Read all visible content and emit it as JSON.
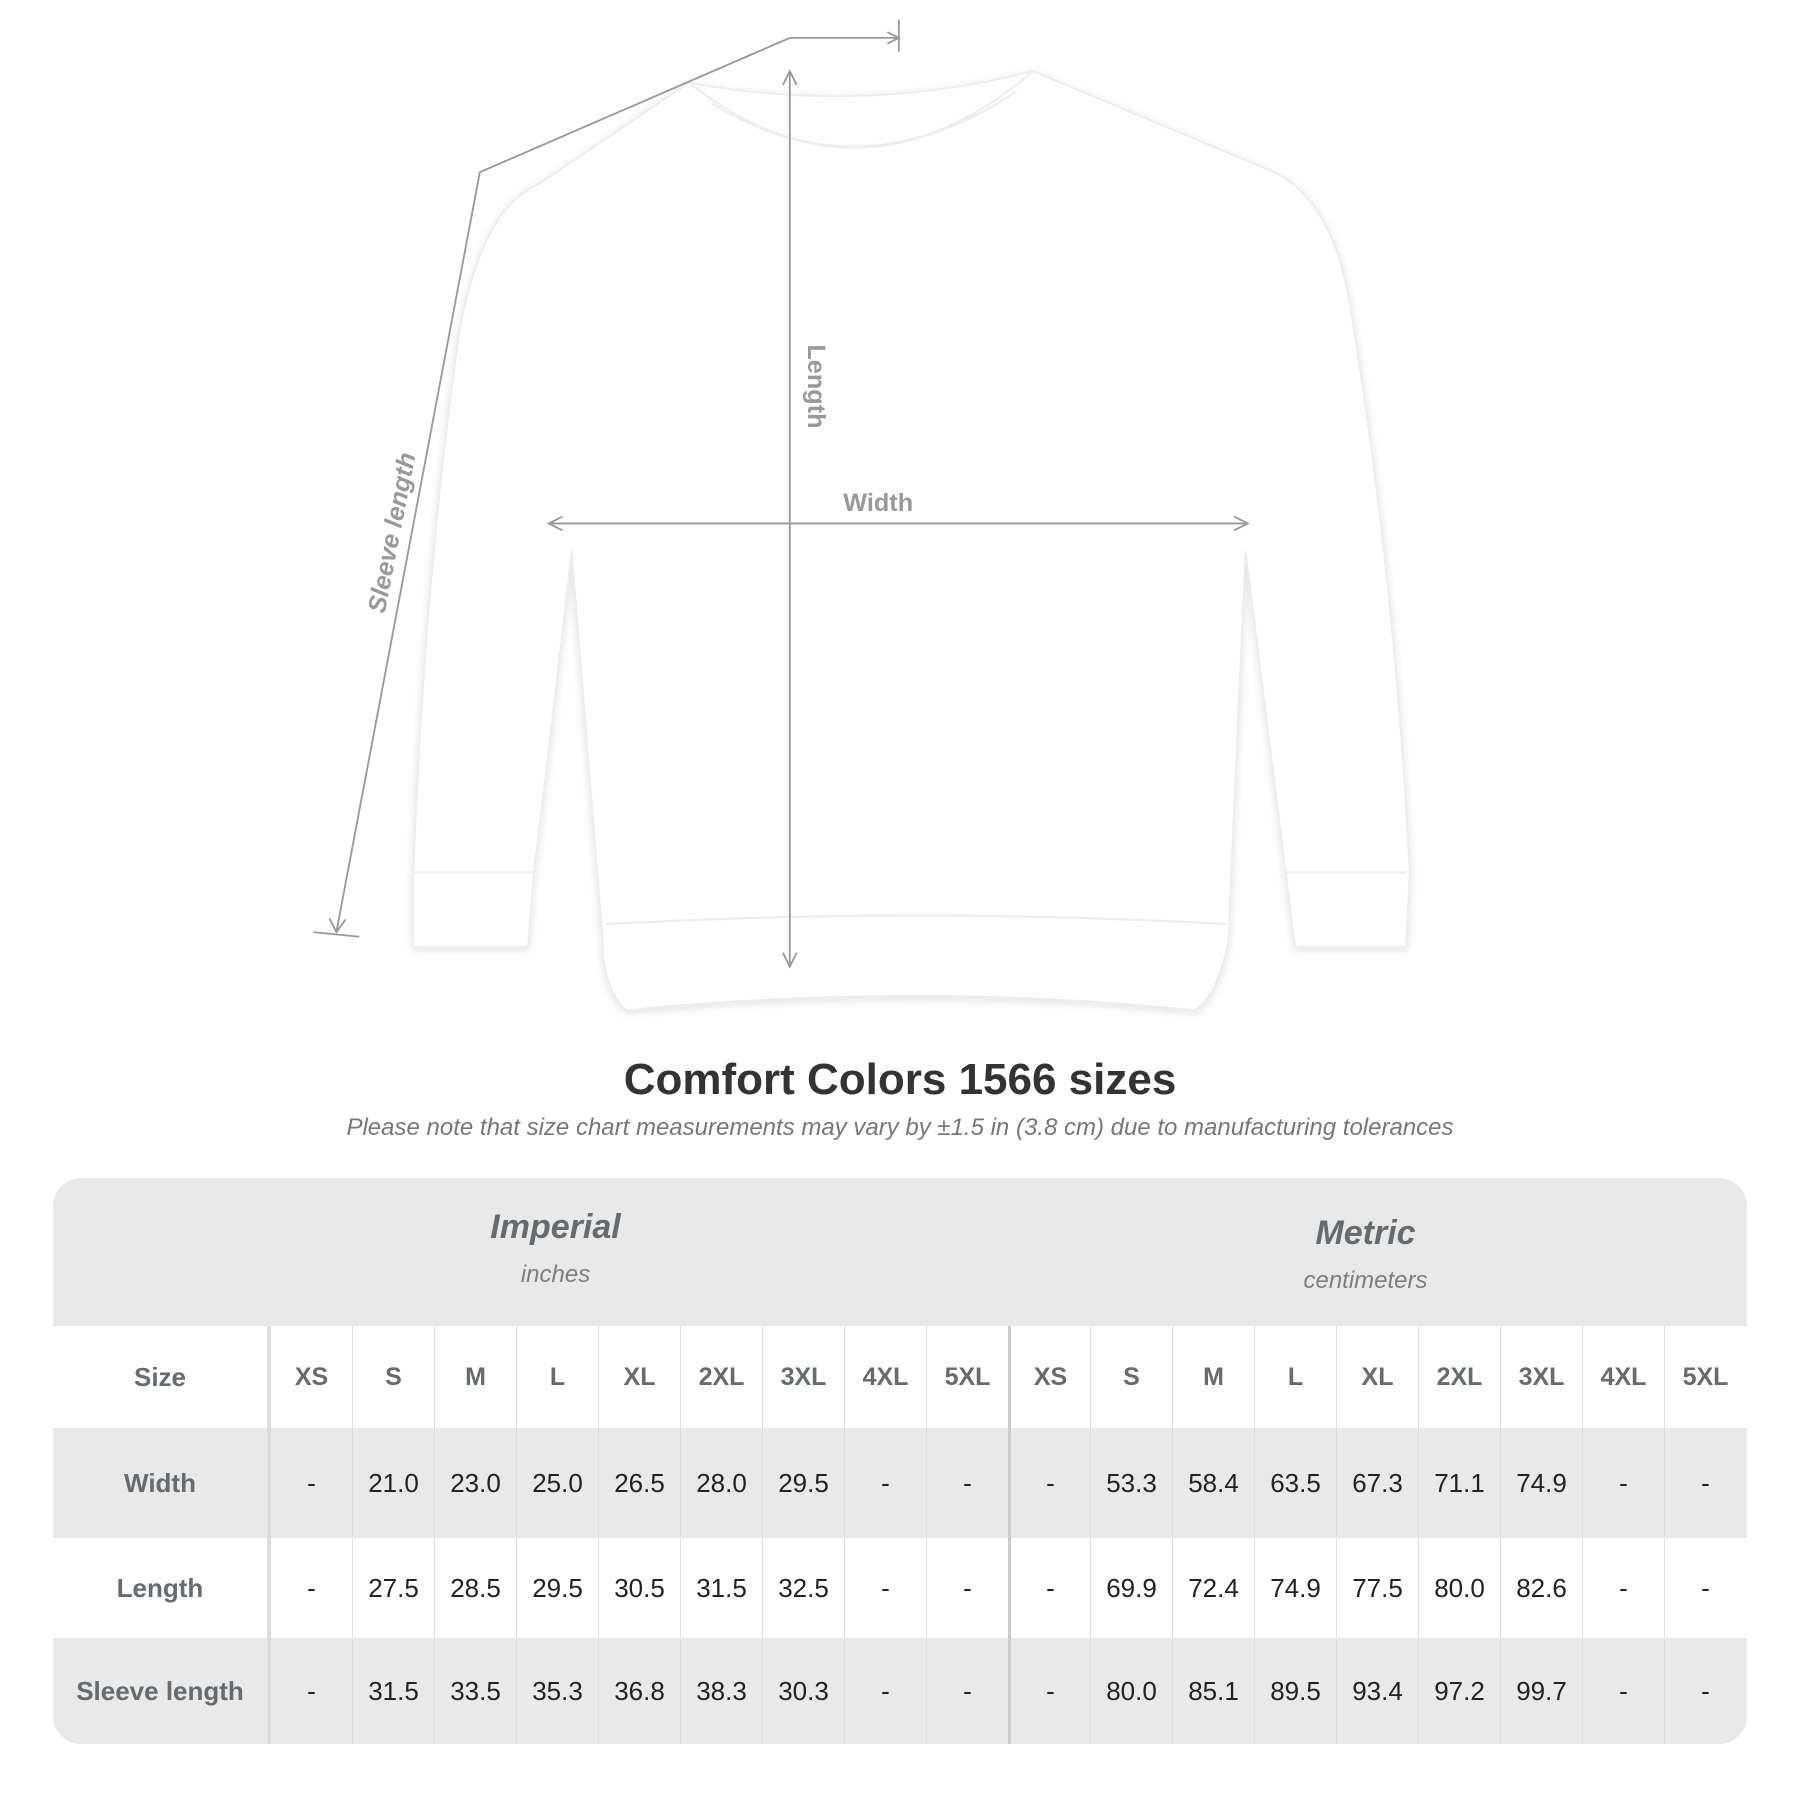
{
  "diagram": {
    "sleeve_label": "Sleeve length",
    "length_label": "Length",
    "width_label": "Width",
    "arrow_color": "#999999"
  },
  "title": "Comfort Colors 1566 sizes",
  "subtitle": "Please note that size chart measurements may vary by ±1.5 in (3.8 cm) due to manufacturing tolerances",
  "table": {
    "imperial": {
      "name": "Imperial",
      "unit": "inches"
    },
    "metric": {
      "name": "Metric",
      "unit": "centimeters"
    },
    "size_label": "Size",
    "sizes": [
      "XS",
      "S",
      "M",
      "L",
      "XL",
      "2XL",
      "3XL",
      "4XL",
      "5XL"
    ],
    "rows": [
      {
        "label": "Width",
        "imperial": [
          "-",
          "21.0",
          "23.0",
          "25.0",
          "26.5",
          "28.0",
          "29.5",
          "-",
          "-"
        ],
        "metric": [
          "-",
          "53.3",
          "58.4",
          "63.5",
          "67.3",
          "71.1",
          "74.9",
          "-",
          "-"
        ]
      },
      {
        "label": "Length",
        "imperial": [
          "-",
          "27.5",
          "28.5",
          "29.5",
          "30.5",
          "31.5",
          "32.5",
          "-",
          "-"
        ],
        "metric": [
          "-",
          "69.9",
          "72.4",
          "74.9",
          "77.5",
          "80.0",
          "82.6",
          "-",
          "-"
        ]
      },
      {
        "label": "Sleeve length",
        "imperial": [
          "-",
          "31.5",
          "33.5",
          "35.3",
          "36.8",
          "38.3",
          "30.3",
          "-",
          "-"
        ],
        "metric": [
          "-",
          "80.0",
          "85.1",
          "89.5",
          "93.4",
          "97.2",
          "99.7",
          "-",
          "-"
        ]
      }
    ]
  }
}
